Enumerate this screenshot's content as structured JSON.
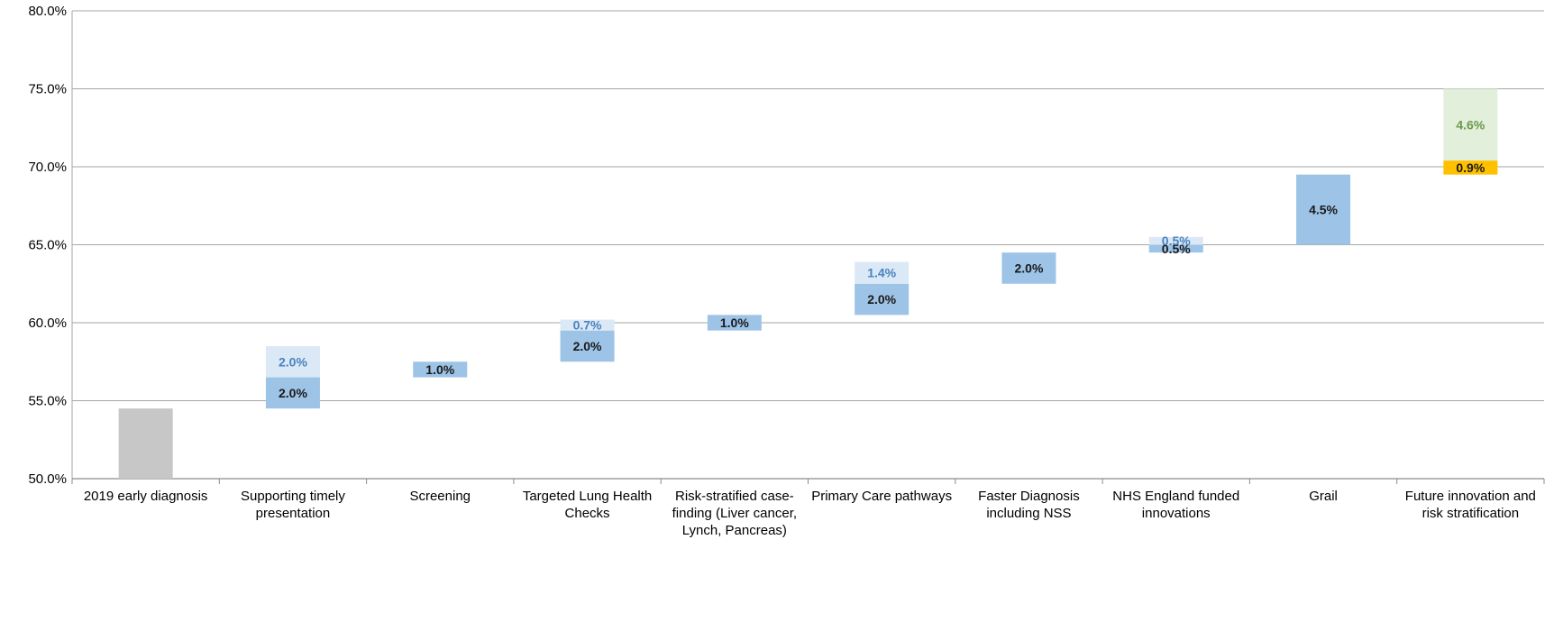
{
  "chart_data": {
    "type": "bar",
    "subtype": "waterfall",
    "title": "",
    "xlabel": "",
    "ylabel": "",
    "ylim": [
      50,
      80
    ],
    "yticks": [
      "50.0%",
      "55.0%",
      "60.0%",
      "65.0%",
      "70.0%",
      "75.0%",
      "80.0%"
    ],
    "ytick_values": [
      50,
      55,
      60,
      65,
      70,
      75,
      80
    ],
    "grid": true,
    "legend": "none",
    "colors": {
      "baseline": "#c7c7c7",
      "dark_blue": "#9dc3e6",
      "light_blue": "#dbe8f5",
      "light_green": "#e2efda",
      "orange": "#ffc000",
      "label_blue": "#4a83c0",
      "label_green": "#6b9a4a",
      "label_dark": "#1a1a1a"
    },
    "categories": [
      "2019 early diagnosis",
      "Supporting timely presentation",
      "Screening",
      "Targeted Lung Health Checks",
      "Risk-stratified case-finding  (Liver cancer, Lynch, Pancreas)",
      "Primary Care pathways",
      "Faster Diagnosis including NSS",
      "NHS England funded innovations",
      "Grail",
      "Future innovation and risk stratification"
    ],
    "segments": [
      {
        "category_index": 0,
        "start": 50.0,
        "value": 4.5,
        "style": "baseline",
        "label": ""
      },
      {
        "category_index": 1,
        "start": 54.5,
        "value": 2.0,
        "style": "dark_blue",
        "label": "2.0%"
      },
      {
        "category_index": 1,
        "start": 56.5,
        "value": 2.0,
        "style": "light_blue",
        "label": "2.0%"
      },
      {
        "category_index": 2,
        "start": 56.5,
        "value": 1.0,
        "style": "dark_blue",
        "label": "1.0%"
      },
      {
        "category_index": 3,
        "start": 57.5,
        "value": 2.0,
        "style": "dark_blue",
        "label": "2.0%"
      },
      {
        "category_index": 3,
        "start": 59.5,
        "value": 0.7,
        "style": "light_blue",
        "label": "0.7%"
      },
      {
        "category_index": 4,
        "start": 59.5,
        "value": 1.0,
        "style": "dark_blue",
        "label": "1.0%"
      },
      {
        "category_index": 5,
        "start": 60.5,
        "value": 2.0,
        "style": "dark_blue",
        "label": "2.0%"
      },
      {
        "category_index": 5,
        "start": 62.5,
        "value": 1.4,
        "style": "light_blue",
        "label": "1.4%"
      },
      {
        "category_index": 6,
        "start": 62.5,
        "value": 2.0,
        "style": "dark_blue",
        "label": "2.0%"
      },
      {
        "category_index": 7,
        "start": 64.5,
        "value": 0.5,
        "style": "dark_blue",
        "label": "0.5%"
      },
      {
        "category_index": 7,
        "start": 65.0,
        "value": 0.5,
        "style": "light_blue",
        "label": "0.5%"
      },
      {
        "category_index": 8,
        "start": 65.0,
        "value": 4.5,
        "style": "dark_blue",
        "label": "4.5%"
      },
      {
        "category_index": 9,
        "start": 69.5,
        "value": 0.9,
        "style": "orange",
        "label": "0.9%"
      },
      {
        "category_index": 9,
        "start": 70.4,
        "value": 4.6,
        "style": "light_green",
        "label": "4.6%"
      }
    ]
  }
}
